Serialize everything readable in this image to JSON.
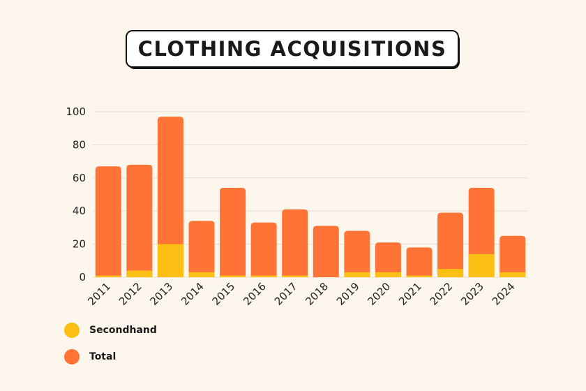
{
  "chart_data": {
    "type": "bar",
    "title": "CLOTHING ACQUISITIONS",
    "xlabel": "",
    "ylabel": "",
    "categories": [
      "2011",
      "2012",
      "2013",
      "2014",
      "2015",
      "2016",
      "2017",
      "2018",
      "2019",
      "2020",
      "2021",
      "2022",
      "2023",
      "2024"
    ],
    "series": [
      {
        "name": "Secondhand",
        "color": "#fcbf14",
        "values": [
          1,
          4,
          20,
          3,
          1,
          1,
          1,
          0,
          3,
          3,
          1,
          5,
          14,
          3
        ]
      },
      {
        "name": "Total",
        "color": "#ff7336",
        "values": [
          67,
          68,
          97,
          34,
          54,
          33,
          41,
          31,
          28,
          21,
          18,
          39,
          54,
          25
        ]
      }
    ],
    "ylim": [
      0,
      100
    ],
    "yticks": [
      0,
      20,
      40,
      60,
      80,
      100
    ],
    "grid": true,
    "legend_position": "bottom-left"
  }
}
